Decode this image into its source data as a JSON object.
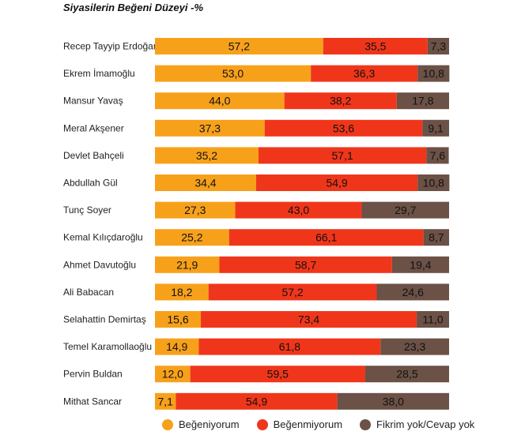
{
  "chart_data": {
    "type": "bar",
    "orientation": "horizontal",
    "stacked": true,
    "title": "Siyasilerin Beğeni Düzeyi -%",
    "xlim": [
      0,
      100
    ],
    "categories": [
      "Recep Tayyip Erdoğan",
      "Ekrem İmamoğlu",
      "Mansur Yavaş",
      "Meral Akşener",
      "Devlet Bahçeli",
      "Abdullah Gül",
      "Tunç Soyer",
      "Kemal Kılıçdaroğlu",
      "Ahmet Davutoğlu",
      "Ali Babacan",
      "Selahattin Demirtaş",
      "Temel Karamollaoğlu",
      "Pervin Buldan",
      "Mithat Sancar"
    ],
    "value_labels": [
      [
        "57,2",
        "35,5",
        "7,3"
      ],
      [
        "53,0",
        "36,3",
        "10,8"
      ],
      [
        "44,0",
        "38,2",
        "17,8"
      ],
      [
        "37,3",
        "53,6",
        "9,1"
      ],
      [
        "35,2",
        "57,1",
        "7,6"
      ],
      [
        "34,4",
        "54,9",
        "10,8"
      ],
      [
        "27,3",
        "43,0",
        "29,7"
      ],
      [
        "25,2",
        "66,1",
        "8,7"
      ],
      [
        "21,9",
        "58,7",
        "19,4"
      ],
      [
        "18,2",
        "57,2",
        "24,6"
      ],
      [
        "15,6",
        "73,4",
        "11,0"
      ],
      [
        "14,9",
        "61,8",
        "23,3"
      ],
      [
        "12,0",
        "59,5",
        "28,5"
      ],
      [
        "7,1",
        "54,9",
        "38,0"
      ]
    ],
    "series": [
      {
        "name": "Beğeniyorum",
        "color": "#F7A11B",
        "values": [
          57.2,
          53.0,
          44.0,
          37.3,
          35.2,
          34.4,
          27.3,
          25.2,
          21.9,
          18.2,
          15.6,
          14.9,
          12.0,
          7.1
        ]
      },
      {
        "name": "Beğenmiyorum",
        "color": "#F0361A",
        "values": [
          35.5,
          36.3,
          38.2,
          53.6,
          57.1,
          54.9,
          43.0,
          66.1,
          58.7,
          57.2,
          73.4,
          61.8,
          59.5,
          54.9
        ]
      },
      {
        "name": "Fikrim yok/Cevap yok",
        "color": "#6B5146",
        "values": [
          7.3,
          10.8,
          17.8,
          9.1,
          7.6,
          10.8,
          29.7,
          8.7,
          19.4,
          24.6,
          11.0,
          23.3,
          28.5,
          38.0
        ]
      }
    ],
    "legend_position": "bottom",
    "grid": false
  }
}
